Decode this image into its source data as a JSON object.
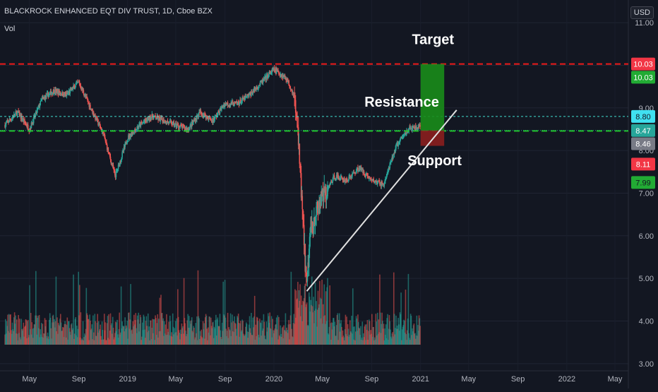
{
  "header": {
    "title": "BLACKROCK ENHANCED EQT DIV TRUST, 1D, Cboe BZX",
    "volume_label": "Vol",
    "currency": "USD"
  },
  "colors": {
    "bg": "#131722",
    "up": "#26a69a",
    "down": "#ef5350",
    "target_zone": "#1a8c1a",
    "stop_zone": "#8b1e1e"
  },
  "chart_data": {
    "type": "candlestick",
    "yaxis_ticks": [
      "3.00",
      "4.00",
      "5.00",
      "6.00",
      "7.00",
      "8.00",
      "9.00",
      "10.00",
      "11.00"
    ],
    "ylim": [
      2.5,
      11.3
    ],
    "xaxis_ticks": [
      "May",
      "Sep",
      "2019",
      "May",
      "Sep",
      "2020",
      "May",
      "Sep",
      "2021",
      "May",
      "Sep",
      "2022",
      "May"
    ],
    "price_path": [
      [
        "2018-03-01",
        8.6
      ],
      [
        "2018-04-01",
        8.9
      ],
      [
        "2018-05-01",
        8.5
      ],
      [
        "2018-06-01",
        9.2
      ],
      [
        "2018-07-01",
        9.4
      ],
      [
        "2018-08-01",
        9.3
      ],
      [
        "2018-09-01",
        9.6
      ],
      [
        "2018-10-01",
        9.0
      ],
      [
        "2018-11-01",
        8.4
      ],
      [
        "2018-12-01",
        7.4
      ],
      [
        "2019-01-01",
        8.3
      ],
      [
        "2019-02-01",
        8.6
      ],
      [
        "2019-03-01",
        8.8
      ],
      [
        "2019-04-01",
        8.7
      ],
      [
        "2019-05-01",
        8.6
      ],
      [
        "2019-06-01",
        8.5
      ],
      [
        "2019-07-01",
        8.9
      ],
      [
        "2019-08-01",
        8.7
      ],
      [
        "2019-09-01",
        9.1
      ],
      [
        "2019-10-01",
        9.1
      ],
      [
        "2019-11-01",
        9.3
      ],
      [
        "2019-12-01",
        9.6
      ],
      [
        "2020-01-01",
        9.9
      ],
      [
        "2020-02-01",
        9.7
      ],
      [
        "2020-02-20",
        9.3
      ],
      [
        "2020-03-01",
        8.4
      ],
      [
        "2020-03-23",
        4.7
      ],
      [
        "2020-04-01",
        6.2
      ],
      [
        "2020-05-01",
        6.9
      ],
      [
        "2020-06-01",
        7.4
      ],
      [
        "2020-07-01",
        7.3
      ],
      [
        "2020-08-01",
        7.6
      ],
      [
        "2020-09-01",
        7.3
      ],
      [
        "2020-10-01",
        7.2
      ],
      [
        "2020-11-01",
        8.1
      ],
      [
        "2020-12-01",
        8.5
      ],
      [
        "2020-12-31",
        8.55
      ]
    ],
    "horizontal_lines": [
      {
        "price": 10.03,
        "style": "dashed",
        "color": "#ef1a1a"
      },
      {
        "price": 8.8,
        "style": "dashed",
        "color": "#40e0d0"
      },
      {
        "price": 8.46,
        "style": "dashed",
        "color": "#22cc22"
      },
      {
        "price": 8.47,
        "style": "dotted",
        "color": "#26a69a"
      }
    ],
    "trendline": {
      "from": [
        "2020-03-23",
        4.7
      ],
      "to": [
        "2021-04-01",
        8.95
      ]
    },
    "position": {
      "start": "2021-01-01",
      "end": "2021-03-01",
      "entry": 8.47,
      "target": 10.03,
      "stop": 8.11
    },
    "price_labels": [
      {
        "text": "10.03",
        "price": 10.03,
        "bg": "#f23645",
        "color": "#ffffff"
      },
      {
        "text": "10.03",
        "price": 9.72,
        "bg": "#22ab34",
        "color": "#ffffff"
      },
      {
        "text": "8.80",
        "price": 8.8,
        "bg": "#40e0f0",
        "color": "#131722"
      },
      {
        "text": "8.47",
        "price": 8.47,
        "bg": "#26a69a",
        "color": "#ffffff"
      },
      {
        "text": "8.46",
        "price": 8.16,
        "bg": "#787b86",
        "color": "#ffffff"
      },
      {
        "text": "8.11",
        "price": 7.68,
        "bg": "#f23645",
        "color": "#ffffff"
      },
      {
        "text": "7.99",
        "price": 7.25,
        "bg": "#22ab34",
        "color": "#131722"
      }
    ],
    "annotations": [
      {
        "text": "Target",
        "date": "2021-02-01",
        "price": 10.5
      },
      {
        "text": "Resistance",
        "date": "2020-11-15",
        "price": 9.03
      },
      {
        "text": "Support",
        "date": "2021-02-05",
        "price": 7.65
      }
    ]
  }
}
